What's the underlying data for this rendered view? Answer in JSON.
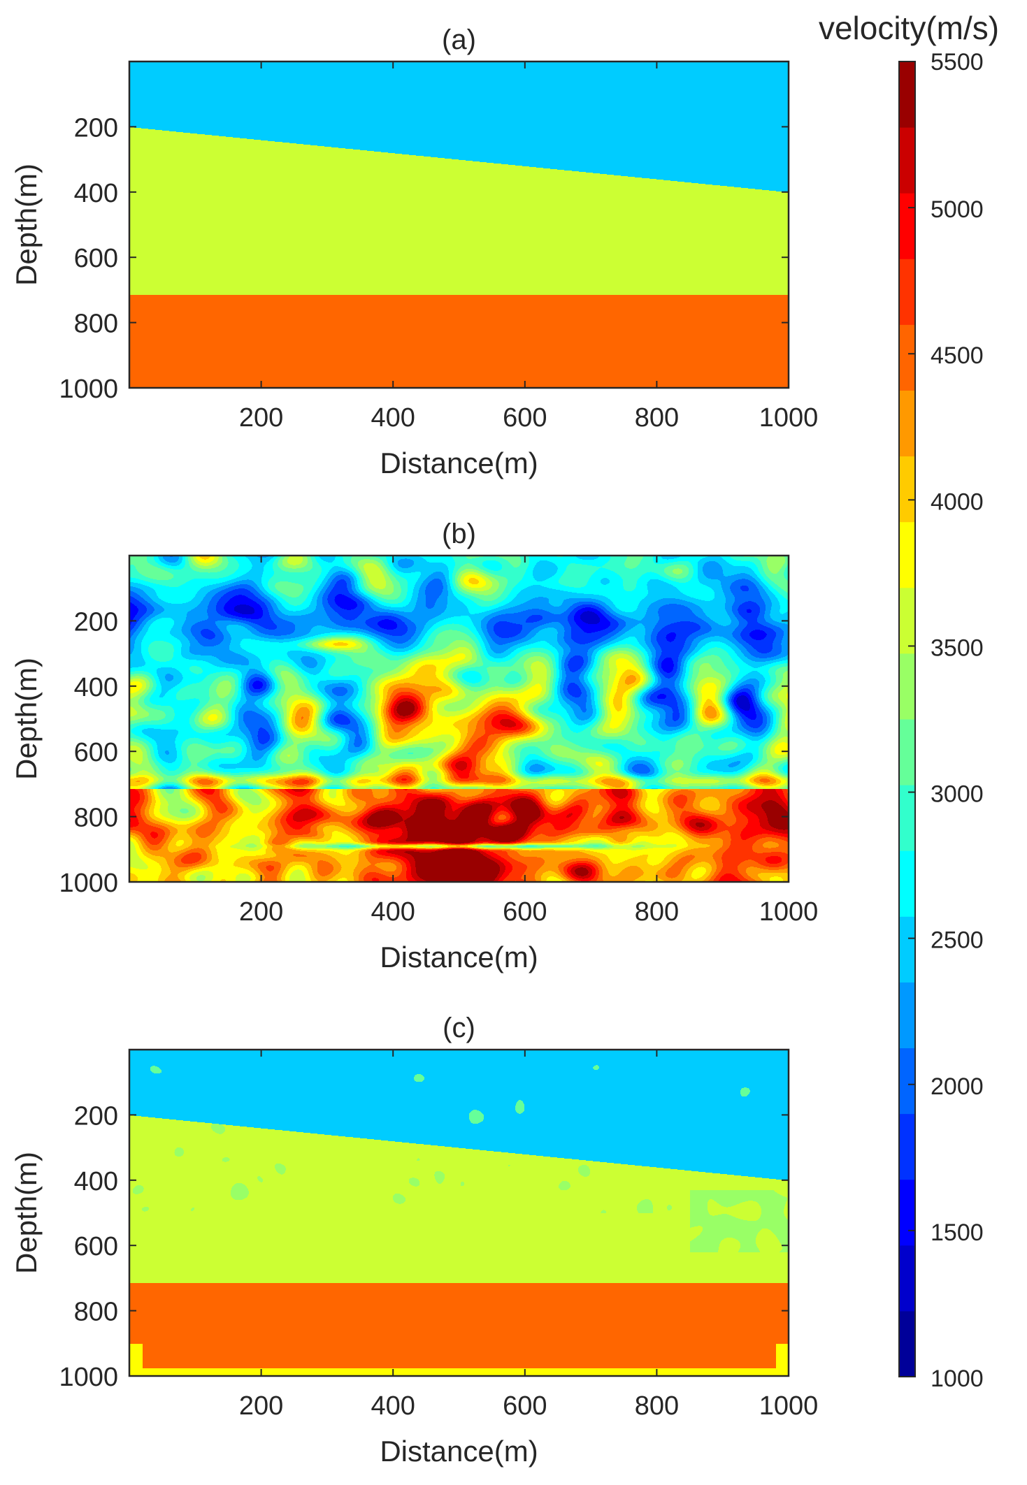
{
  "colorbar": {
    "title": "velocity(m/s)",
    "colormap": "jet",
    "levels": 20,
    "range": [
      1000,
      5500
    ],
    "ticks": [
      1000,
      1500,
      2000,
      2500,
      3000,
      3500,
      4000,
      4500,
      5000,
      5500
    ]
  },
  "chart_data": [
    {
      "type": "heatmap",
      "title": "(a)",
      "xlabel": "Distance(m)",
      "ylabel": "Depth(m)",
      "xlim": [
        0,
        1000
      ],
      "ylim": [
        0,
        1000
      ],
      "y_reversed": true,
      "xticks": [
        200,
        400,
        600,
        800,
        1000
      ],
      "yticks": [
        200,
        400,
        600,
        800,
        1000
      ],
      "layers": [
        {
          "velocity": 2500,
          "top_depth": [
            0,
            0
          ],
          "bottom_depth": [
            200,
            400
          ]
        },
        {
          "velocity": 3600,
          "top_depth": [
            200,
            400
          ],
          "bottom_depth": [
            715,
            715
          ]
        },
        {
          "velocity": 4500,
          "top_depth": [
            715,
            715
          ],
          "bottom_depth": [
            1000,
            1000
          ]
        }
      ]
    },
    {
      "type": "heatmap",
      "title": "(b)",
      "xlabel": "Distance(m)",
      "ylabel": "Depth(m)",
      "xlim": [
        0,
        1000
      ],
      "ylim": [
        0,
        1000
      ],
      "y_reversed": true,
      "xticks": [
        200,
        400,
        600,
        800,
        1000
      ],
      "yticks": [
        200,
        400,
        600,
        800,
        1000
      ],
      "description_values": {
        "shallow_low_velocity_band": {
          "depth": [
            100,
            300
          ],
          "velocity": 1800
        },
        "middle_background": {
          "depth": [
            300,
            715
          ],
          "velocity": 2900
        },
        "central_high_anomalies": {
          "x": [
            380,
            620
          ],
          "depth": [
            330,
            600
          ],
          "velocity": 5000
        },
        "deep_high_zone": {
          "x": [
            330,
            680
          ],
          "depth": [
            760,
            900
          ],
          "velocity": 5400
        },
        "deep_background": {
          "depth": [
            715,
            1000
          ],
          "velocity": 4200
        }
      }
    },
    {
      "type": "heatmap",
      "title": "(c)",
      "xlabel": "Distance(m)",
      "ylabel": "Depth(m)",
      "xlim": [
        0,
        1000
      ],
      "ylim": [
        0,
        1000
      ],
      "y_reversed": true,
      "xticks": [
        200,
        400,
        600,
        800,
        1000
      ],
      "yticks": [
        200,
        400,
        600,
        800,
        1000
      ],
      "layers": [
        {
          "velocity": 2500,
          "top_depth": [
            0,
            0
          ],
          "bottom_depth": [
            200,
            400
          ]
        },
        {
          "velocity": 3600,
          "top_depth": [
            200,
            400
          ],
          "bottom_depth": [
            715,
            715
          ]
        },
        {
          "velocity": 4500,
          "top_depth": [
            715,
            715
          ],
          "bottom_depth": [
            980,
            980
          ]
        },
        {
          "velocity": 3900,
          "top_depth": [
            980,
            980
          ],
          "bottom_depth": [
            1000,
            1000
          ]
        }
      ]
    }
  ]
}
